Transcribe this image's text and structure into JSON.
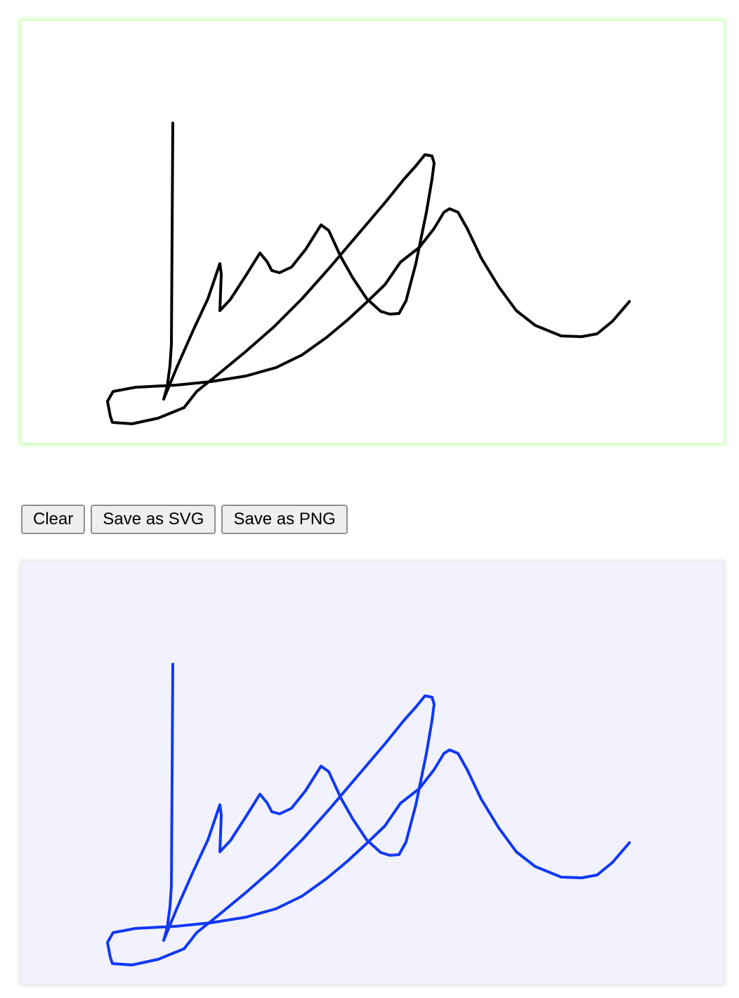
{
  "toolbar": {
    "clear_label": "Clear",
    "save_svg_label": "Save as SVG",
    "save_png_label": "Save as PNG"
  },
  "colors": {
    "canvas_background": "#ffffff",
    "canvas_glow": "#9cff7a",
    "stroke_primary": "#000000",
    "preview_background": "#f1f2fd",
    "stroke_preview": "#1038f5"
  }
}
